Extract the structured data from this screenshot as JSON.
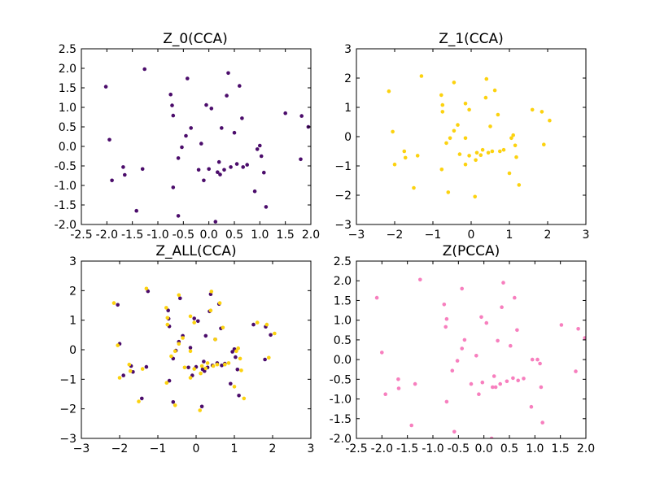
{
  "chart_data": [
    {
      "type": "scatter",
      "title": "Z_0(CCA)",
      "xlim": [
        -2.5,
        2.0
      ],
      "ylim": [
        -2.0,
        2.5
      ],
      "xticks": [
        "-2.5",
        "-2.0",
        "-1.5",
        "-1.0",
        "-0.5",
        "0.0",
        "0.5",
        "1.0",
        "1.5",
        "2.0"
      ],
      "yticks": [
        "-2.0",
        "-1.5",
        "-1.0",
        "-0.5",
        "0.0",
        "0.5",
        "1.0",
        "1.5",
        "2.0",
        "2.5"
      ],
      "series": [
        {
          "color": "#4b0c6b",
          "points": [
            [
              -2.02,
              1.53
            ],
            [
              -1.95,
              0.17
            ],
            [
              -1.9,
              -0.87
            ],
            [
              -1.68,
              -0.53
            ],
            [
              -1.65,
              -0.73
            ],
            [
              -1.42,
              -1.65
            ],
            [
              -1.3,
              -0.58
            ],
            [
              -1.26,
              1.98
            ],
            [
              -0.75,
              1.33
            ],
            [
              -0.72,
              1.05
            ],
            [
              -0.7,
              0.79
            ],
            [
              -0.7,
              -1.05
            ],
            [
              -0.6,
              -1.78
            ],
            [
              -0.6,
              -0.3
            ],
            [
              -0.53,
              -0.02
            ],
            [
              -0.45,
              0.27
            ],
            [
              -0.42,
              1.74
            ],
            [
              -0.35,
              0.47
            ],
            [
              -0.2,
              -0.6
            ],
            [
              -0.15,
              0.07
            ],
            [
              -0.1,
              -0.87
            ],
            [
              -0.05,
              1.06
            ],
            [
              0.0,
              -0.58
            ],
            [
              0.05,
              0.97
            ],
            [
              0.13,
              -1.93
            ],
            [
              0.17,
              -0.66
            ],
            [
              0.2,
              -0.4
            ],
            [
              0.22,
              -0.72
            ],
            [
              0.25,
              0.47
            ],
            [
              0.3,
              -0.6
            ],
            [
              0.35,
              1.3
            ],
            [
              0.38,
              1.88
            ],
            [
              0.43,
              -0.53
            ],
            [
              0.5,
              0.35
            ],
            [
              0.55,
              -0.45
            ],
            [
              0.6,
              1.55
            ],
            [
              0.65,
              0.72
            ],
            [
              0.67,
              -0.53
            ],
            [
              0.75,
              -0.47
            ],
            [
              0.9,
              -1.15
            ],
            [
              0.95,
              -0.07
            ],
            [
              1.0,
              0.02
            ],
            [
              1.03,
              -0.25
            ],
            [
              1.08,
              -0.67
            ],
            [
              1.12,
              -1.55
            ],
            [
              1.5,
              0.85
            ],
            [
              1.8,
              -0.33
            ],
            [
              1.82,
              0.78
            ],
            [
              1.95,
              0.5
            ]
          ]
        }
      ]
    },
    {
      "type": "scatter",
      "title": "Z_1(CCA)",
      "xlim": [
        -3,
        3
      ],
      "ylim": [
        -3,
        3
      ],
      "xticks": [
        "−3",
        "−2",
        "−1",
        "0",
        "1",
        "2",
        "3"
      ],
      "yticks": [
        "−3",
        "−2",
        "−1",
        "0",
        "1",
        "2",
        "3"
      ],
      "series": [
        {
          "color": "#fcd20f",
          "points": [
            [
              -2.15,
              1.55
            ],
            [
              -2.05,
              0.17
            ],
            [
              -2.0,
              -0.95
            ],
            [
              -1.75,
              -0.5
            ],
            [
              -1.72,
              -0.72
            ],
            [
              -1.5,
              -1.75
            ],
            [
              -1.4,
              -0.65
            ],
            [
              -1.3,
              2.07
            ],
            [
              -0.78,
              1.42
            ],
            [
              -0.75,
              1.08
            ],
            [
              -0.75,
              0.85
            ],
            [
              -0.77,
              -1.12
            ],
            [
              -0.6,
              -1.9
            ],
            [
              -0.65,
              -0.22
            ],
            [
              -0.55,
              -0.05
            ],
            [
              -0.45,
              0.2
            ],
            [
              -0.45,
              1.85
            ],
            [
              -0.35,
              0.4
            ],
            [
              -0.3,
              -0.6
            ],
            [
              -0.15,
              -0.05
            ],
            [
              -0.15,
              -0.95
            ],
            [
              -0.15,
              1.13
            ],
            [
              -0.05,
              -0.65
            ],
            [
              -0.05,
              0.92
            ],
            [
              0.1,
              -2.05
            ],
            [
              0.12,
              -0.8
            ],
            [
              0.15,
              -0.55
            ],
            [
              0.25,
              -0.63
            ],
            [
              0.3,
              -0.45
            ],
            [
              0.38,
              1.33
            ],
            [
              0.4,
              1.97
            ],
            [
              0.45,
              -0.55
            ],
            [
              0.5,
              0.35
            ],
            [
              0.55,
              -0.5
            ],
            [
              0.62,
              1.58
            ],
            [
              0.7,
              0.75
            ],
            [
              0.75,
              -0.5
            ],
            [
              0.85,
              -0.45
            ],
            [
              1.0,
              -1.25
            ],
            [
              1.05,
              -0.05
            ],
            [
              1.1,
              0.05
            ],
            [
              1.15,
              -0.3
            ],
            [
              1.18,
              -0.7
            ],
            [
              1.25,
              -1.65
            ],
            [
              1.6,
              0.92
            ],
            [
              1.85,
              0.85
            ],
            [
              1.9,
              -0.27
            ],
            [
              2.05,
              0.55
            ]
          ]
        }
      ]
    },
    {
      "type": "scatter",
      "title": "Z_ALL(CCA)",
      "xlim": [
        -3,
        3
      ],
      "ylim": [
        -3,
        3
      ],
      "xticks": [
        "−3",
        "−2",
        "−1",
        "0",
        "1",
        "2",
        "3"
      ],
      "yticks": [
        "−3",
        "−2",
        "−1",
        "0",
        "1",
        "2",
        "3"
      ],
      "series": [
        {
          "color": "#4b0c6b",
          "points": [
            [
              -2.05,
              1.52
            ],
            [
              -2.0,
              0.2
            ],
            [
              -1.9,
              -0.87
            ],
            [
              -1.7,
              -0.55
            ],
            [
              -1.65,
              -0.75
            ],
            [
              -1.42,
              -1.65
            ],
            [
              -1.3,
              -0.58
            ],
            [
              -1.26,
              1.98
            ],
            [
              -0.73,
              1.33
            ],
            [
              -0.72,
              1.05
            ],
            [
              -0.7,
              0.79
            ],
            [
              -0.7,
              -1.05
            ],
            [
              -0.6,
              -1.77
            ],
            [
              -0.6,
              -0.3
            ],
            [
              -0.53,
              -0.03
            ],
            [
              -0.45,
              0.27
            ],
            [
              -0.42,
              1.74
            ],
            [
              -0.35,
              0.47
            ],
            [
              -0.2,
              -0.6
            ],
            [
              -0.15,
              0.07
            ],
            [
              -0.1,
              -0.87
            ],
            [
              -0.05,
              1.06
            ],
            [
              0.0,
              -0.58
            ],
            [
              0.05,
              0.97
            ],
            [
              0.15,
              -1.92
            ],
            [
              0.17,
              -0.66
            ],
            [
              0.2,
              -0.4
            ],
            [
              0.22,
              -0.72
            ],
            [
              0.25,
              0.47
            ],
            [
              0.3,
              -0.6
            ],
            [
              0.35,
              1.3
            ],
            [
              0.38,
              1.88
            ],
            [
              0.43,
              -0.53
            ],
            [
              0.5,
              0.35
            ],
            [
              0.55,
              -0.45
            ],
            [
              0.6,
              1.55
            ],
            [
              0.65,
              0.72
            ],
            [
              0.67,
              -0.53
            ],
            [
              0.75,
              -0.47
            ],
            [
              0.9,
              -1.15
            ],
            [
              0.95,
              -0.07
            ],
            [
              1.0,
              0.02
            ],
            [
              1.03,
              -0.25
            ],
            [
              1.08,
              -0.67
            ],
            [
              1.12,
              -1.55
            ],
            [
              1.5,
              0.85
            ],
            [
              1.8,
              -0.33
            ],
            [
              1.82,
              0.78
            ],
            [
              1.95,
              0.5
            ]
          ]
        },
        {
          "color": "#fcd20f",
          "points": [
            [
              -2.15,
              1.58
            ],
            [
              -2.05,
              0.15
            ],
            [
              -2.0,
              -0.95
            ],
            [
              -1.75,
              -0.5
            ],
            [
              -1.72,
              -0.72
            ],
            [
              -1.5,
              -1.75
            ],
            [
              -1.4,
              -0.65
            ],
            [
              -1.3,
              2.07
            ],
            [
              -0.78,
              1.42
            ],
            [
              -0.75,
              1.08
            ],
            [
              -0.75,
              0.85
            ],
            [
              -0.77,
              -1.12
            ],
            [
              -0.55,
              -1.88
            ],
            [
              -0.65,
              -0.22
            ],
            [
              -0.55,
              -0.05
            ],
            [
              -0.45,
              0.2
            ],
            [
              -0.45,
              1.85
            ],
            [
              -0.35,
              0.4
            ],
            [
              -0.3,
              -0.6
            ],
            [
              -0.15,
              -0.05
            ],
            [
              -0.15,
              -0.95
            ],
            [
              -0.15,
              1.13
            ],
            [
              -0.05,
              -0.65
            ],
            [
              -0.05,
              0.92
            ],
            [
              0.1,
              -2.05
            ],
            [
              0.12,
              -0.8
            ],
            [
              0.15,
              -0.55
            ],
            [
              0.25,
              -0.63
            ],
            [
              0.3,
              -0.45
            ],
            [
              0.38,
              1.33
            ],
            [
              0.4,
              1.97
            ],
            [
              0.45,
              -0.55
            ],
            [
              0.5,
              0.35
            ],
            [
              0.55,
              -0.5
            ],
            [
              0.62,
              1.58
            ],
            [
              0.7,
              0.75
            ],
            [
              0.75,
              -0.5
            ],
            [
              0.85,
              -0.45
            ],
            [
              1.0,
              -1.25
            ],
            [
              1.05,
              -0.05
            ],
            [
              1.1,
              0.05
            ],
            [
              1.15,
              -0.3
            ],
            [
              1.18,
              -0.7
            ],
            [
              1.25,
              -1.65
            ],
            [
              1.6,
              0.92
            ],
            [
              1.85,
              0.85
            ],
            [
              1.9,
              -0.27
            ],
            [
              2.05,
              0.55
            ]
          ]
        }
      ]
    },
    {
      "type": "scatter",
      "title": "Z(PCCA)",
      "xlim": [
        -2.5,
        2.0
      ],
      "ylim": [
        -2.0,
        2.5
      ],
      "xticks": [
        "-2.5",
        "-2.0",
        "-1.5",
        "-1.0",
        "-0.5",
        "0.0",
        "0.5",
        "1.0",
        "1.5",
        "2.0"
      ],
      "yticks": [
        "-2.0",
        "-1.5",
        "-1.0",
        "-0.5",
        "0.0",
        "0.5",
        "1.0",
        "1.5",
        "2.0",
        "2.5"
      ],
      "series": [
        {
          "color": "#f77fbe",
          "points": [
            [
              -2.1,
              1.57
            ],
            [
              -2.0,
              0.18
            ],
            [
              -1.93,
              -0.88
            ],
            [
              -1.68,
              -0.5
            ],
            [
              -1.67,
              -0.73
            ],
            [
              -1.42,
              -1.67
            ],
            [
              -1.35,
              -0.62
            ],
            [
              -1.25,
              2.03
            ],
            [
              -0.78,
              1.4
            ],
            [
              -0.73,
              1.03
            ],
            [
              -0.75,
              0.83
            ],
            [
              -0.73,
              -1.07
            ],
            [
              -0.58,
              -1.83
            ],
            [
              -0.62,
              -0.28
            ],
            [
              -0.52,
              -0.03
            ],
            [
              -0.43,
              0.28
            ],
            [
              -0.43,
              1.8
            ],
            [
              -0.38,
              0.5
            ],
            [
              -0.25,
              -0.62
            ],
            [
              -0.15,
              0.1
            ],
            [
              -0.1,
              -0.88
            ],
            [
              -0.05,
              1.08
            ],
            [
              -0.03,
              -0.58
            ],
            [
              0.05,
              0.93
            ],
            [
              0.15,
              -2.0
            ],
            [
              0.17,
              -0.7
            ],
            [
              0.2,
              -0.42
            ],
            [
              0.23,
              -0.7
            ],
            [
              0.27,
              0.48
            ],
            [
              0.32,
              -0.62
            ],
            [
              0.35,
              1.33
            ],
            [
              0.38,
              1.95
            ],
            [
              0.45,
              -0.55
            ],
            [
              0.52,
              0.35
            ],
            [
              0.57,
              -0.47
            ],
            [
              0.6,
              1.57
            ],
            [
              0.65,
              0.75
            ],
            [
              0.67,
              -0.53
            ],
            [
              0.78,
              -0.48
            ],
            [
              0.93,
              -1.2
            ],
            [
              0.95,
              0.0
            ],
            [
              1.05,
              0.0
            ],
            [
              1.1,
              -0.1
            ],
            [
              1.12,
              -0.7
            ],
            [
              1.15,
              -1.6
            ],
            [
              1.52,
              0.88
            ],
            [
              1.8,
              -0.3
            ],
            [
              1.85,
              0.78
            ],
            [
              1.98,
              0.55
            ]
          ]
        }
      ]
    }
  ]
}
